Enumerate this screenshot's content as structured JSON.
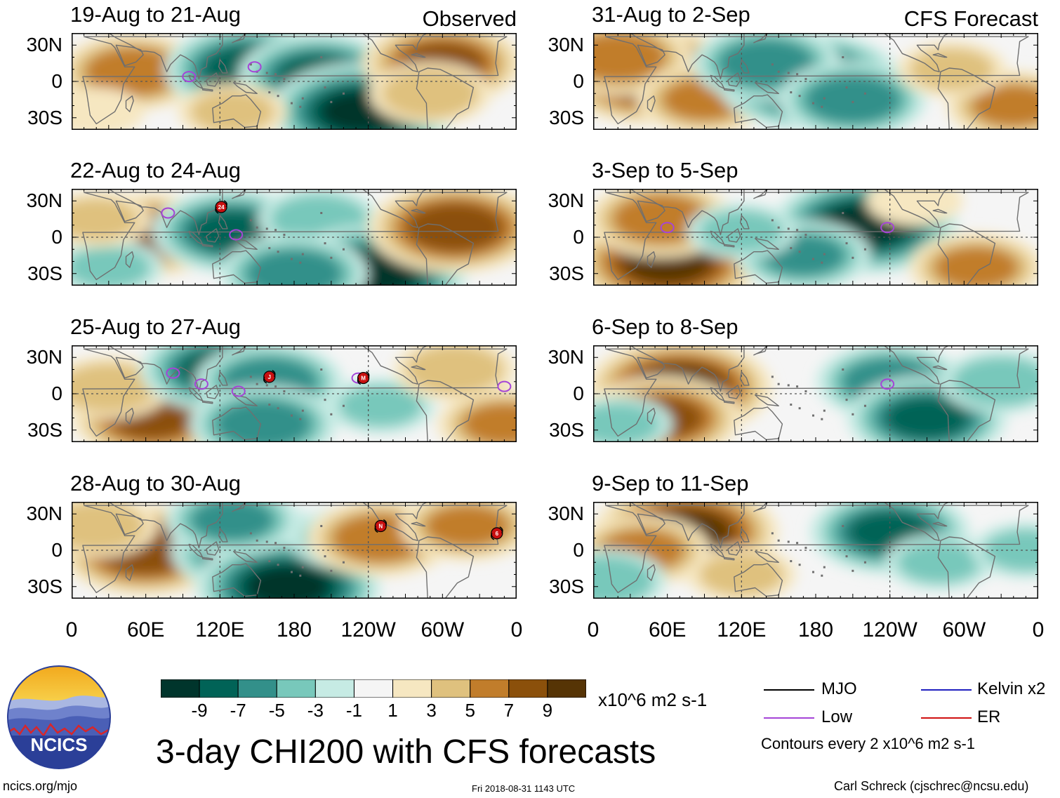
{
  "colors": {
    "scale": [
      "#00352c",
      "#016357",
      "#33908a",
      "#78c8bb",
      "#c6ebe4",
      "#f5f5f5",
      "#f6e7c1",
      "#dfc17e",
      "#c17d2b",
      "#8b500b",
      "#563405"
    ],
    "contour_low": "#a545d7",
    "mjo": "#000000",
    "kelvin": "#2020c0",
    "er": "#d01010",
    "coast": "#6f6f6f"
  },
  "chart_data": {
    "type": "heatmap",
    "title": "3-day CHI200 with CFS forecasts",
    "units": "x10^6 m2 s-1",
    "lat_range": [
      -40,
      40
    ],
    "lon_range": [
      0,
      360
    ],
    "y_ticks": [
      "30N",
      "0",
      "30S"
    ],
    "x_ticks": [
      "0",
      "60E",
      "120E",
      "180",
      "120W",
      "60W",
      "0"
    ],
    "colorbar_ticks": [
      "-9",
      "-7",
      "-5",
      "-3",
      "-1",
      "1",
      "3",
      "5",
      "7",
      "9"
    ],
    "column_labels": [
      "Observed",
      "CFS Forecast"
    ],
    "panels": [
      {
        "col": 0,
        "row": 0,
        "title": "19-Aug to 21-Aug",
        "corner": "Observed",
        "anomalies": [
          {
            "lon": 50,
            "lat": 8,
            "v": 6
          },
          {
            "lon": 145,
            "lat": 10,
            "v": -8
          },
          {
            "lon": 200,
            "lat": 5,
            "v": -7
          },
          {
            "lon": 235,
            "lat": -25,
            "v": -9
          },
          {
            "lon": 300,
            "lat": 15,
            "v": 7
          },
          {
            "lon": 290,
            "lat": -10,
            "v": 4
          },
          {
            "lon": 130,
            "lat": -25,
            "v": 3
          },
          {
            "lon": 20,
            "lat": -25,
            "v": 2
          }
        ],
        "contours": [
          {
            "kind": "low",
            "lon": 95,
            "lat": 4
          },
          {
            "kind": "low",
            "lon": 148,
            "lat": 12
          }
        ],
        "storms": []
      },
      {
        "col": 0,
        "row": 1,
        "title": "22-Aug to 24-Aug",
        "corner": "",
        "anomalies": [
          {
            "lon": 60,
            "lat": 2,
            "v": 7
          },
          {
            "lon": 130,
            "lat": 5,
            "v": -7
          },
          {
            "lon": 200,
            "lat": 15,
            "v": -4
          },
          {
            "lon": 245,
            "lat": -30,
            "v": -9
          },
          {
            "lon": 310,
            "lat": 8,
            "v": 8
          },
          {
            "lon": 180,
            "lat": -30,
            "v": -6
          },
          {
            "lon": 30,
            "lat": -25,
            "v": -3
          },
          {
            "lon": 20,
            "lat": 15,
            "v": 3
          }
        ],
        "contours": [
          {
            "kind": "low",
            "lon": 78,
            "lat": 20
          },
          {
            "kind": "low",
            "lon": 133,
            "lat": 2
          }
        ],
        "storms": [
          {
            "label": "24",
            "lon": 121,
            "lat": 25
          }
        ]
      },
      {
        "col": 0,
        "row": 2,
        "title": "25-Aug to 27-Aug",
        "corner": "",
        "anomalies": [
          {
            "lon": 65,
            "lat": -20,
            "v": 7
          },
          {
            "lon": 30,
            "lat": 5,
            "v": 4
          },
          {
            "lon": 120,
            "lat": 20,
            "v": -7
          },
          {
            "lon": 160,
            "lat": 10,
            "v": -6
          },
          {
            "lon": 155,
            "lat": -25,
            "v": -6
          },
          {
            "lon": 250,
            "lat": -10,
            "v": -3
          },
          {
            "lon": 310,
            "lat": 20,
            "v": 4
          },
          {
            "lon": 350,
            "lat": -25,
            "v": 5
          }
        ],
        "contours": [
          {
            "kind": "low",
            "lon": 82,
            "lat": 17
          },
          {
            "kind": "low",
            "lon": 105,
            "lat": 8
          },
          {
            "kind": "low",
            "lon": 135,
            "lat": 2
          },
          {
            "kind": "low",
            "lon": 232,
            "lat": 13
          },
          {
            "kind": "low",
            "lon": 350,
            "lat": 6
          }
        ],
        "storms": [
          {
            "label": "J",
            "lon": 160,
            "lat": 14
          },
          {
            "label": "M",
            "lon": 236,
            "lat": 13
          }
        ]
      },
      {
        "col": 0,
        "row": 3,
        "title": "28-Aug to 30-Aug",
        "corner": "",
        "anomalies": [
          {
            "lon": 60,
            "lat": 0,
            "v": 8
          },
          {
            "lon": 20,
            "lat": 20,
            "v": 4
          },
          {
            "lon": 150,
            "lat": 0,
            "v": -8
          },
          {
            "lon": 175,
            "lat": -30,
            "v": -9
          },
          {
            "lon": 130,
            "lat": 25,
            "v": -5
          },
          {
            "lon": 225,
            "lat": 10,
            "v": -4
          },
          {
            "lon": 250,
            "lat": 10,
            "v": 6
          },
          {
            "lon": 320,
            "lat": 20,
            "v": 5
          }
        ],
        "contours": [],
        "storms": [
          {
            "label": "N",
            "lon": 250,
            "lat": 20
          },
          {
            "label": "6",
            "lon": 344,
            "lat": 14
          }
        ]
      },
      {
        "col": 1,
        "row": 0,
        "title": "31-Aug to 2-Sep",
        "corner": "CFS Forecast",
        "anomalies": [
          {
            "lon": 45,
            "lat": 5,
            "v": 9
          },
          {
            "lon": 20,
            "lat": 20,
            "v": 6
          },
          {
            "lon": 90,
            "lat": -15,
            "v": 5
          },
          {
            "lon": 175,
            "lat": 0,
            "v": -9
          },
          {
            "lon": 140,
            "lat": 15,
            "v": -6
          },
          {
            "lon": 210,
            "lat": -15,
            "v": -6
          },
          {
            "lon": 340,
            "lat": -20,
            "v": 5
          },
          {
            "lon": 290,
            "lat": 10,
            "v": 3
          }
        ],
        "contours": [],
        "storms": []
      },
      {
        "col": 1,
        "row": 1,
        "title": "3-Sep to 5-Sep",
        "corner": "",
        "anomalies": [
          {
            "lon": 60,
            "lat": -20,
            "v": 9
          },
          {
            "lon": 55,
            "lat": 15,
            "v": 6
          },
          {
            "lon": 220,
            "lat": 10,
            "v": -9
          },
          {
            "lon": 170,
            "lat": -15,
            "v": -5
          },
          {
            "lon": 120,
            "lat": 5,
            "v": -3
          },
          {
            "lon": 310,
            "lat": -25,
            "v": 5
          },
          {
            "lon": 260,
            "lat": 30,
            "v": 2
          }
        ],
        "contours": [
          {
            "kind": "low",
            "lon": 60,
            "lat": 8
          },
          {
            "kind": "low",
            "lon": 238,
            "lat": 8
          }
        ],
        "storms": []
      },
      {
        "col": 1,
        "row": 2,
        "title": "6-Sep to 8-Sep",
        "corner": "",
        "anomalies": [
          {
            "lon": 70,
            "lat": 5,
            "v": 9
          },
          {
            "lon": 55,
            "lat": -20,
            "v": 7
          },
          {
            "lon": 240,
            "lat": 10,
            "v": -6
          },
          {
            "lon": 270,
            "lat": -20,
            "v": -7
          },
          {
            "lon": 330,
            "lat": 10,
            "v": -4
          },
          {
            "lon": 20,
            "lat": -25,
            "v": -3
          }
        ],
        "contours": [
          {
            "kind": "low",
            "lon": 238,
            "lat": 8
          }
        ],
        "storms": []
      },
      {
        "col": 1,
        "row": 3,
        "title": "9-Sep to 11-Sep",
        "corner": "",
        "anomalies": [
          {
            "lon": 75,
            "lat": 15,
            "v": 9
          },
          {
            "lon": 40,
            "lat": 0,
            "v": 5
          },
          {
            "lon": 120,
            "lat": -20,
            "v": 3
          },
          {
            "lon": 240,
            "lat": 15,
            "v": -7
          },
          {
            "lon": 280,
            "lat": -10,
            "v": -3
          },
          {
            "lon": 10,
            "lat": -25,
            "v": -4
          },
          {
            "lon": 350,
            "lat": 0,
            "v": -3
          }
        ],
        "contours": [],
        "storms": []
      }
    ]
  },
  "footer": {
    "logo_text": "NCICS",
    "url": "ncics.org/mjo",
    "timestamp": "Fri 2018-08-31 1143 UTC",
    "author": "Carl Schreck (cjschrec@ncsu.edu)",
    "units_label": "x10^6 m2 s-1",
    "main_title": "3-day CHI200 with CFS forecasts"
  },
  "legend": {
    "mjo": "MJO",
    "low": "Low",
    "kelvin": "Kelvin x2",
    "er": "ER",
    "note": "Contours every 2 x10^6 m2 s-1"
  }
}
